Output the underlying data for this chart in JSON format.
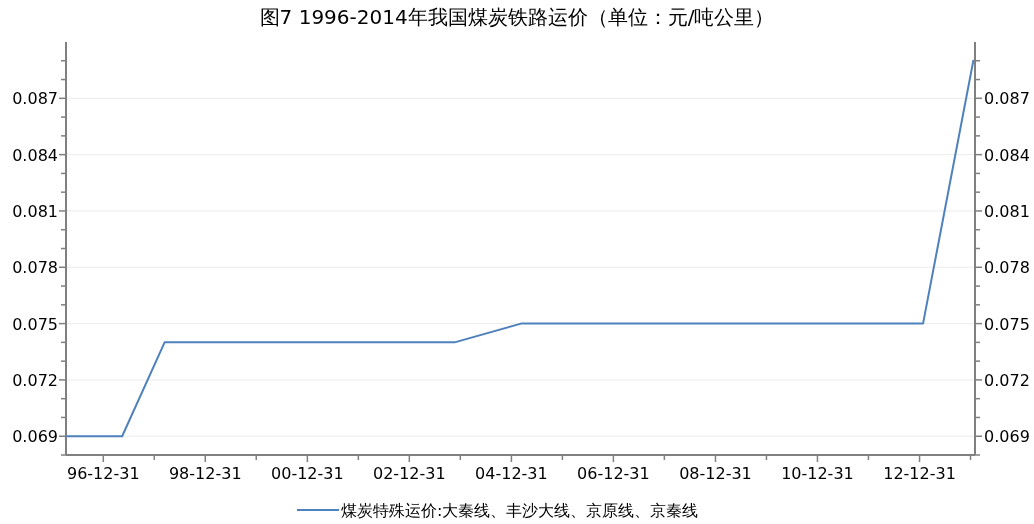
{
  "chart_data": {
    "type": "line",
    "title": "图7   1996-2014年我国煤炭铁路运价（单位：元/吨公里）",
    "x": [
      "1996-04-08",
      "1997-05-15",
      "1998-03-15",
      "2003-11-20",
      "2005-03-10",
      "2013-01-25",
      "2014-01-20"
    ],
    "series": [
      {
        "name": "煤炭特殊运价:大秦线、丰沙大线、京原线、京秦线",
        "color": "#4f81bd",
        "values": [
          0.069,
          0.069,
          0.074,
          0.074,
          0.075,
          0.075,
          0.089
        ]
      }
    ],
    "xlim": [
      "1996-04-08",
      "2014-02-01"
    ],
    "xticks": [
      {
        "value": "1996-12-31",
        "label": "96-12-31"
      },
      {
        "value": "1997-12-31",
        "label": null
      },
      {
        "value": "1998-12-31",
        "label": "98-12-31"
      },
      {
        "value": "1999-12-31",
        "label": null
      },
      {
        "value": "2000-12-31",
        "label": "00-12-31"
      },
      {
        "value": "2001-12-31",
        "label": null
      },
      {
        "value": "2002-12-31",
        "label": "02-12-31"
      },
      {
        "value": "2003-12-31",
        "label": null
      },
      {
        "value": "2004-12-31",
        "label": "04-12-31"
      },
      {
        "value": "2005-12-31",
        "label": null
      },
      {
        "value": "2006-12-31",
        "label": "06-12-31"
      },
      {
        "value": "2007-12-31",
        "label": null
      },
      {
        "value": "2008-12-31",
        "label": "08-12-31"
      },
      {
        "value": "2009-12-31",
        "label": null
      },
      {
        "value": "2010-12-31",
        "label": "10-12-31"
      },
      {
        "value": "2011-12-31",
        "label": null
      },
      {
        "value": "2012-12-31",
        "label": "12-12-31"
      },
      {
        "value": "2013-12-31",
        "label": null
      }
    ],
    "ylim": [
      0.068,
      0.09
    ],
    "yticks": [
      {
        "value": 0.068,
        "label": null
      },
      {
        "value": 0.069,
        "label": "0.069"
      },
      {
        "value": 0.07,
        "label": null
      },
      {
        "value": 0.071,
        "label": null
      },
      {
        "value": 0.072,
        "label": "0.072"
      },
      {
        "value": 0.073,
        "label": null
      },
      {
        "value": 0.074,
        "label": null
      },
      {
        "value": 0.075,
        "label": "0.075"
      },
      {
        "value": 0.076,
        "label": null
      },
      {
        "value": 0.077,
        "label": null
      },
      {
        "value": 0.078,
        "label": "0.078"
      },
      {
        "value": 0.079,
        "label": null
      },
      {
        "value": 0.08,
        "label": null
      },
      {
        "value": 0.081,
        "label": "0.081"
      },
      {
        "value": 0.082,
        "label": null
      },
      {
        "value": 0.083,
        "label": null
      },
      {
        "value": 0.084,
        "label": "0.084"
      },
      {
        "value": 0.085,
        "label": null
      },
      {
        "value": 0.086,
        "label": null
      },
      {
        "value": 0.087,
        "label": "0.087"
      },
      {
        "value": 0.088,
        "label": null
      },
      {
        "value": 0.089,
        "label": null
      }
    ],
    "y2lim": [
      0.068,
      0.09
    ],
    "y2ticks": [
      {
        "value": 0.068,
        "label": null
      },
      {
        "value": 0.069,
        "label": "0.069"
      },
      {
        "value": 0.07,
        "label": null
      },
      {
        "value": 0.071,
        "label": null
      },
      {
        "value": 0.072,
        "label": "0.072"
      },
      {
        "value": 0.073,
        "label": null
      },
      {
        "value": 0.074,
        "label": null
      },
      {
        "value": 0.075,
        "label": "0.075"
      },
      {
        "value": 0.076,
        "label": null
      },
      {
        "value": 0.077,
        "label": null
      },
      {
        "value": 0.078,
        "label": "0.078"
      },
      {
        "value": 0.079,
        "label": null
      },
      {
        "value": 0.08,
        "label": null
      },
      {
        "value": 0.081,
        "label": "0.081"
      },
      {
        "value": 0.082,
        "label": null
      },
      {
        "value": 0.083,
        "label": null
      },
      {
        "value": 0.084,
        "label": "0.084"
      },
      {
        "value": 0.085,
        "label": null
      },
      {
        "value": 0.086,
        "label": null
      },
      {
        "value": 0.087,
        "label": "0.087"
      },
      {
        "value": 0.088,
        "label": null
      },
      {
        "value": 0.089,
        "label": null
      }
    ],
    "grid": "y",
    "legend": "bottom",
    "marker": "none",
    "line_style": "solid"
  }
}
